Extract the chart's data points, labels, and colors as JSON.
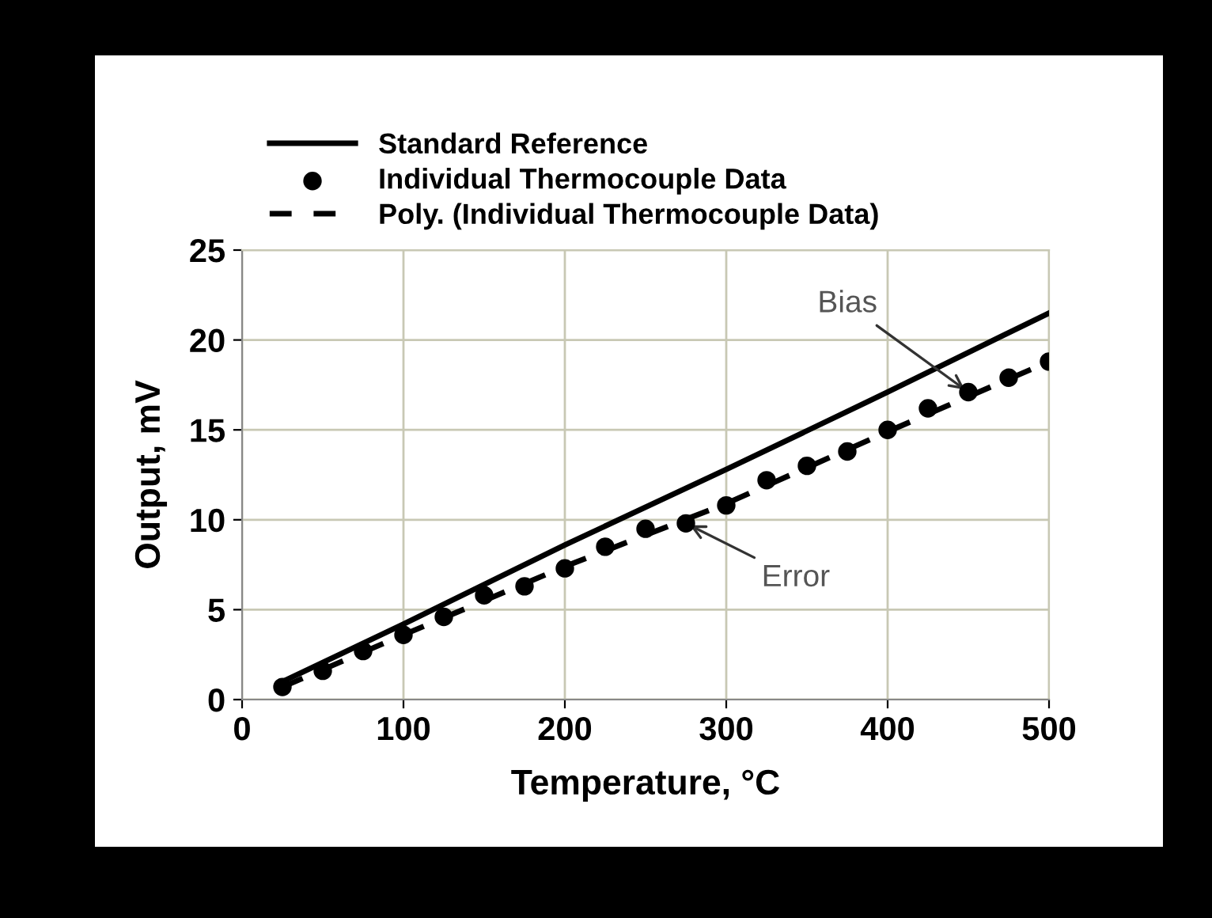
{
  "chart_data": {
    "type": "line",
    "xlabel": "Temperature, °C",
    "ylabel": "Output, mV",
    "xlim": [
      0,
      500
    ],
    "ylim": [
      0,
      25
    ],
    "xticks": [
      0,
      100,
      200,
      300,
      400,
      500
    ],
    "yticks": [
      0,
      5,
      10,
      15,
      20,
      25
    ],
    "grid": true,
    "legend": "top left",
    "series": [
      {
        "name": "Standard Reference",
        "type": "line",
        "color": "#000000",
        "line_style": "solid",
        "marker": "none",
        "x": [
          25,
          100,
          200,
          300,
          400,
          500
        ],
        "values": [
          1.0,
          4.2,
          8.6,
          12.8,
          17.1,
          21.5
        ]
      },
      {
        "name": "Individual Thermocouple Data",
        "type": "scatter",
        "color": "#000000",
        "marker": "circle",
        "x": [
          25,
          50,
          75,
          100,
          125,
          150,
          175,
          200,
          225,
          250,
          275,
          300,
          325,
          350,
          375,
          400,
          425,
          450,
          475,
          500
        ],
        "values": [
          0.7,
          1.6,
          2.7,
          3.6,
          4.6,
          5.8,
          6.3,
          7.3,
          8.5,
          9.5,
          9.8,
          10.8,
          12.2,
          13.0,
          13.8,
          15.0,
          16.2,
          17.1,
          17.9,
          18.8
        ]
      },
      {
        "name": "Poly. (Individual Thermocouple Data)",
        "type": "line",
        "color": "#000000",
        "line_style": "dashed",
        "marker": "none",
        "x": [
          25,
          100,
          200,
          300,
          400,
          500
        ],
        "values": [
          0.7,
          3.6,
          7.4,
          10.9,
          14.9,
          18.8
        ]
      }
    ],
    "annotations": [
      {
        "text": "Bias",
        "x": 450,
        "y": 17.1
      },
      {
        "text": "Error",
        "x": 275,
        "y": 9.8
      }
    ]
  }
}
